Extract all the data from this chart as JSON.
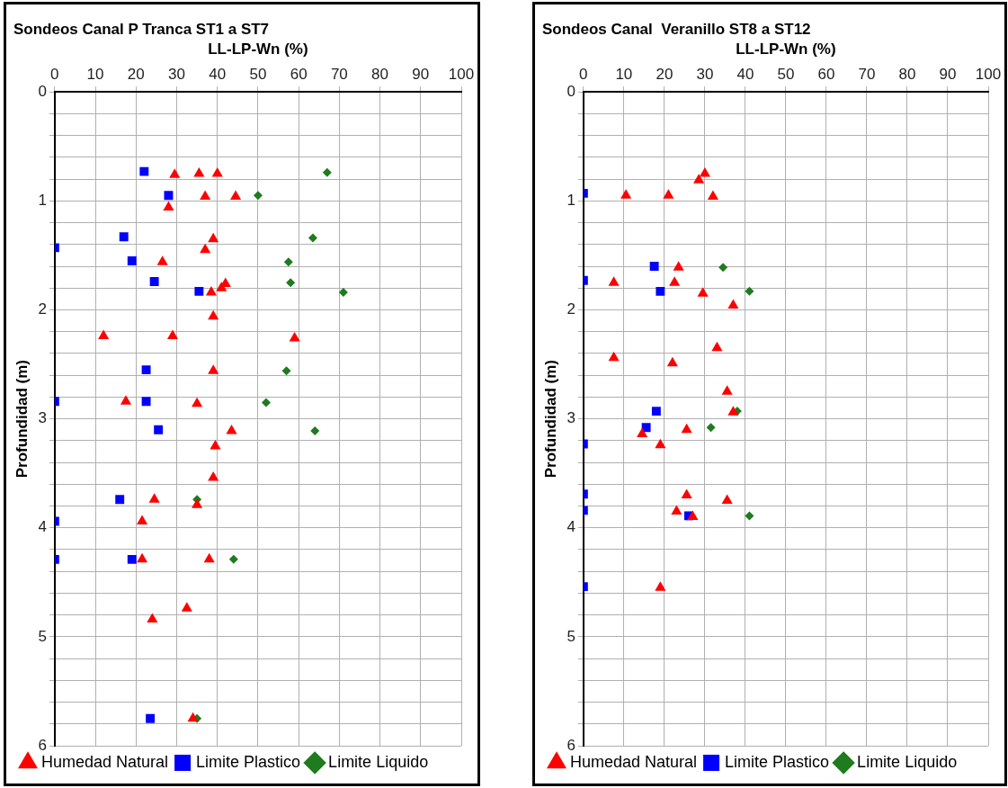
{
  "chart_data": [
    {
      "type": "scatter",
      "title": "Sondeos Canal P Tranca ST1 a ST7",
      "xlabel": "LL-LP-Wn (%)",
      "ylabel": "Profundidad (m)",
      "xlim": [
        0,
        100
      ],
      "xticks": [
        0,
        10,
        20,
        30,
        40,
        50,
        60,
        70,
        80,
        90,
        100
      ],
      "ylim": [
        6,
        0
      ],
      "yticks": [
        0,
        {
          "value": 0.2,
          "label": null
        },
        {
          "value": 0.4,
          "label": null
        },
        {
          "value": 0.6,
          "label": null
        },
        {
          "value": 0.8,
          "label": null
        },
        1,
        {
          "value": 1.2,
          "label": null
        },
        {
          "value": 1.4,
          "label": null
        },
        {
          "value": 1.6,
          "label": null
        },
        {
          "value": 1.8,
          "label": null
        },
        2,
        {
          "value": 2.2,
          "label": null
        },
        {
          "value": 2.4,
          "label": null
        },
        {
          "value": 2.6,
          "label": null
        },
        {
          "value": 2.8,
          "label": null
        },
        3,
        {
          "value": 3.2,
          "label": null
        },
        {
          "value": 3.4,
          "label": null
        },
        {
          "value": 3.6,
          "label": null
        },
        {
          "value": 3.8,
          "label": null
        },
        4,
        {
          "value": 4.2,
          "label": null
        },
        {
          "value": 4.4,
          "label": null
        },
        {
          "value": 4.6,
          "label": null
        },
        {
          "value": 4.8,
          "label": null
        },
        5,
        {
          "value": 5.2,
          "label": null
        },
        {
          "value": 5.4,
          "label": null
        },
        {
          "value": 5.6,
          "label": null
        },
        {
          "value": 5.8,
          "label": null
        },
        6
      ],
      "grid": true,
      "legend": "bottom",
      "series": [
        {
          "name": "Limite Liquido",
          "color": "#1e7b1e",
          "marker": "diamond",
          "x": [
            67,
            50,
            63.5,
            57.5,
            58,
            71,
            57,
            52,
            64,
            35,
            44,
            35
          ],
          "values": [
            0.74,
            0.95,
            1.34,
            1.56,
            1.75,
            1.84,
            2.56,
            2.85,
            3.11,
            3.74,
            4.29,
            5.75
          ]
        },
        {
          "name": "Limite Plastico",
          "color": "#0000ff",
          "marker": "square",
          "x": [
            22,
            28,
            17,
            0,
            19,
            24.5,
            35.5,
            22.5,
            0,
            22.5,
            25.5,
            16,
            0,
            0,
            19,
            23.5
          ],
          "values": [
            0.73,
            0.95,
            1.33,
            1.43,
            1.55,
            1.74,
            1.83,
            2.55,
            2.84,
            2.84,
            3.1,
            3.74,
            3.94,
            4.29,
            4.29,
            5.75
          ]
        },
        {
          "name": "Humedad Natural",
          "color": "#ff0000",
          "marker": "triangle",
          "x": [
            29.5,
            35.5,
            40,
            37,
            44.5,
            28,
            39,
            37,
            26.5,
            42,
            41,
            38.5,
            39,
            12,
            29,
            59,
            39,
            17.5,
            35,
            43.5,
            39.5,
            39,
            24.5,
            35,
            21.5,
            21.5,
            38,
            32.5,
            24,
            34
          ],
          "values": [
            0.76,
            0.75,
            0.75,
            0.96,
            0.96,
            1.06,
            1.35,
            1.45,
            1.56,
            1.76,
            1.8,
            1.84,
            2.06,
            2.24,
            2.24,
            2.26,
            2.56,
            2.84,
            2.86,
            3.11,
            3.25,
            3.54,
            3.74,
            3.79,
            3.94,
            4.29,
            4.29,
            4.74,
            4.84,
            5.75
          ]
        }
      ]
    },
    {
      "type": "scatter",
      "title": "Sondeos Canal  Veranillo ST8 a ST12",
      "xlabel": "LL-LP-Wn (%)",
      "ylabel": "Profundidad (m)",
      "xlim": [
        0,
        100
      ],
      "xticks": [
        0,
        10,
        20,
        30,
        40,
        50,
        60,
        70,
        80,
        90,
        100
      ],
      "ylim": [
        6,
        0
      ],
      "yticks": [
        0,
        {
          "value": 0.2,
          "label": null
        },
        {
          "value": 0.4,
          "label": null
        },
        {
          "value": 0.6,
          "label": null
        },
        {
          "value": 0.8,
          "label": null
        },
        1,
        {
          "value": 1.2,
          "label": null
        },
        {
          "value": 1.4,
          "label": null
        },
        {
          "value": 1.6,
          "label": null
        },
        {
          "value": 1.8,
          "label": null
        },
        2,
        {
          "value": 2.2,
          "label": null
        },
        {
          "value": 2.4,
          "label": null
        },
        {
          "value": 2.6,
          "label": null
        },
        {
          "value": 2.8,
          "label": null
        },
        3,
        {
          "value": 3.2,
          "label": null
        },
        {
          "value": 3.4,
          "label": null
        },
        {
          "value": 3.6,
          "label": null
        },
        {
          "value": 3.8,
          "label": null
        },
        4,
        {
          "value": 4.2,
          "label": null
        },
        {
          "value": 4.4,
          "label": null
        },
        {
          "value": 4.6,
          "label": null
        },
        {
          "value": 4.8,
          "label": null
        },
        5,
        {
          "value": 5.2,
          "label": null
        },
        {
          "value": 5.4,
          "label": null
        },
        {
          "value": 5.6,
          "label": null
        },
        {
          "value": 5.8,
          "label": null
        },
        6
      ],
      "grid": true,
      "legend": "bottom",
      "series": [
        {
          "name": "Limite Liquido",
          "color": "#1e7b1e",
          "marker": "diamond",
          "x": [
            34.5,
            41,
            38,
            31.5,
            41
          ],
          "values": [
            1.61,
            1.83,
            2.93,
            3.08,
            3.89
          ]
        },
        {
          "name": "Limite Plastico",
          "color": "#0000ff",
          "marker": "square",
          "x": [
            0,
            17.5,
            0,
            19,
            18,
            15.5,
            0,
            0,
            0,
            26,
            0
          ],
          "values": [
            0.93,
            1.6,
            1.73,
            1.83,
            2.93,
            3.08,
            3.23,
            3.69,
            3.84,
            3.89,
            4.54
          ]
        },
        {
          "name": "Humedad Natural",
          "color": "#ff0000",
          "marker": "triangle",
          "x": [
            30,
            28.5,
            10.5,
            21,
            32,
            23.5,
            7.5,
            22.5,
            29.5,
            37,
            33,
            7.5,
            22,
            35.5,
            37,
            25.5,
            14.5,
            19,
            25.5,
            35.5,
            23,
            27,
            19
          ],
          "values": [
            0.75,
            0.81,
            0.95,
            0.95,
            0.96,
            1.61,
            1.75,
            1.75,
            1.85,
            1.96,
            2.35,
            2.44,
            2.49,
            2.75,
            2.94,
            3.1,
            3.14,
            3.24,
            3.7,
            3.75,
            3.85,
            3.9,
            4.55
          ]
        }
      ]
    }
  ]
}
